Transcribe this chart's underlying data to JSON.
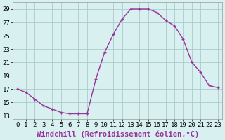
{
  "x": [
    0,
    1,
    2,
    3,
    4,
    5,
    6,
    7,
    8,
    9,
    10,
    11,
    12,
    13,
    14,
    15,
    16,
    17,
    18,
    19,
    20,
    21,
    22,
    23
  ],
  "y": [
    17.0,
    16.5,
    15.5,
    14.5,
    14.0,
    13.5,
    13.3,
    13.3,
    13.3,
    18.5,
    22.5,
    25.2,
    27.5,
    29.0,
    29.0,
    29.0,
    28.5,
    27.3,
    26.5,
    24.5,
    21.0,
    19.5,
    17.5,
    17.2
  ],
  "xlim": [
    -0.5,
    23.5
  ],
  "ylim": [
    12.5,
    30
  ],
  "yticks": [
    13,
    15,
    17,
    19,
    21,
    23,
    25,
    27,
    29
  ],
  "xticks": [
    0,
    1,
    2,
    3,
    4,
    5,
    6,
    7,
    8,
    9,
    10,
    11,
    12,
    13,
    14,
    15,
    16,
    17,
    18,
    19,
    20,
    21,
    22,
    23
  ],
  "line_color": "#993399",
  "marker": "+",
  "bg_color": "#d8f0f0",
  "grid_color": "#aacccc",
  "xlabel": "Windchill (Refroidissement éolien,°C)",
  "xlabel_fontsize": 7.5,
  "tick_fontsize": 6.5,
  "figwidth": 3.2,
  "figheight": 2.0,
  "dpi": 100
}
